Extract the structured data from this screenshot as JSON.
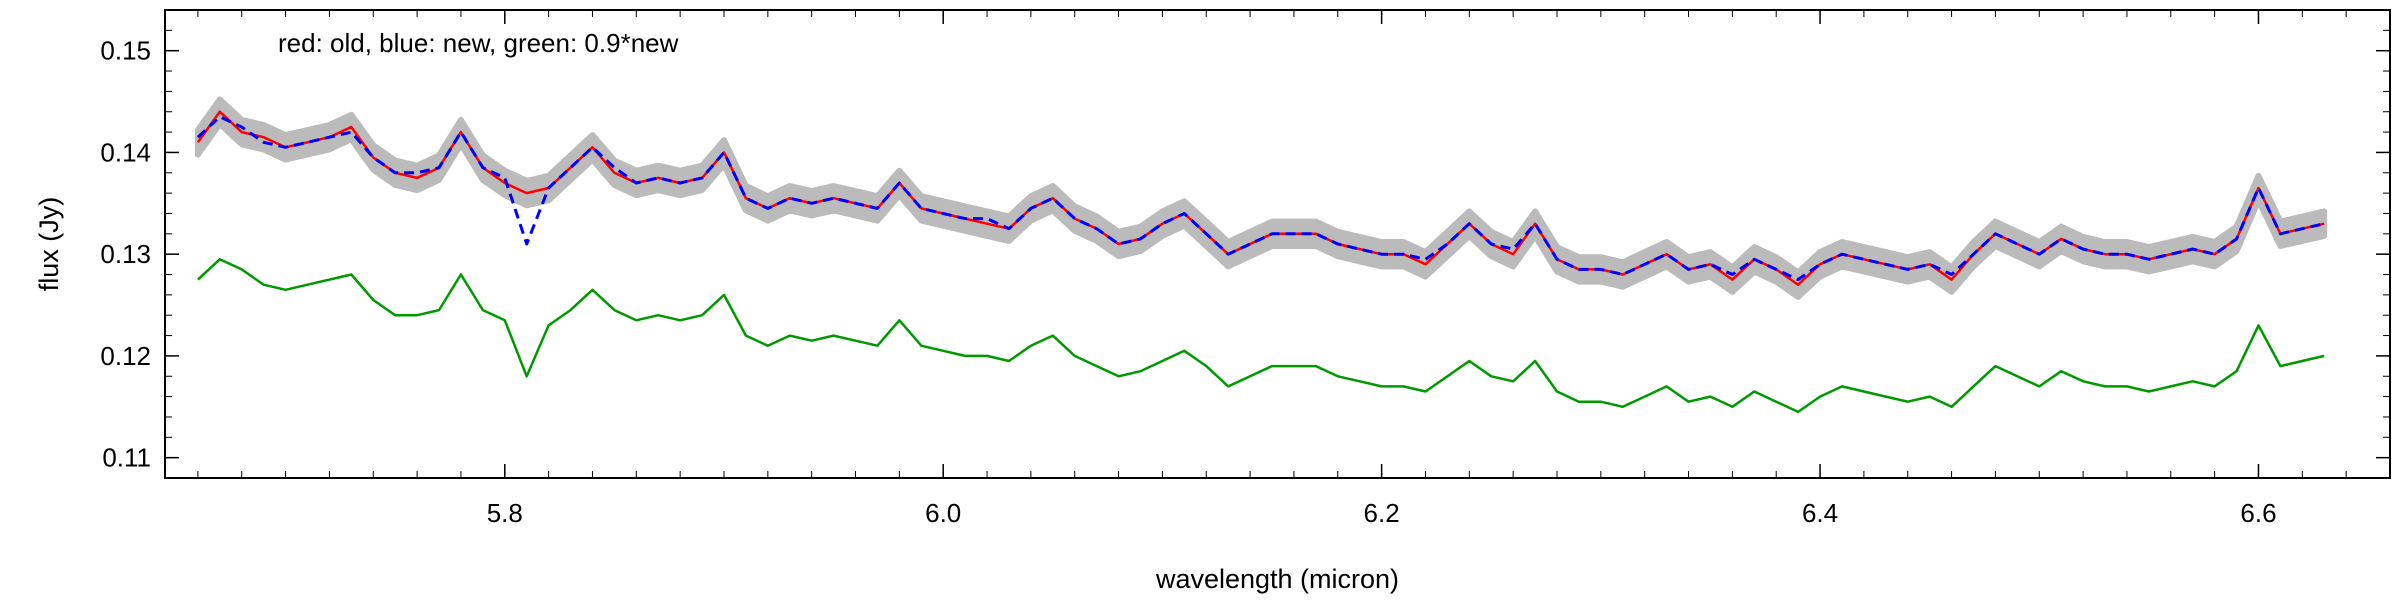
{
  "chart_data": {
    "type": "line",
    "title": "",
    "xlabel": "wavelength (micron)",
    "ylabel": "flux (Jy)",
    "annotation": "red: old, blue: new, green: 0.9*new",
    "xlim": [
      5.645,
      6.66
    ],
    "ylim": [
      0.108,
      0.154
    ],
    "x_ticks": [
      5.8,
      6.0,
      6.2,
      6.4,
      6.6
    ],
    "x_tick_labels": [
      "5.8",
      "6.0",
      "6.2",
      "6.4",
      "6.6"
    ],
    "y_ticks": [
      0.11,
      0.12,
      0.13,
      0.14,
      0.15
    ],
    "y_tick_labels": [
      "0.11",
      "0.12",
      "0.13",
      "0.14",
      "0.15"
    ],
    "grid": false,
    "x": [
      5.66,
      5.67,
      5.68,
      5.69,
      5.7,
      5.71,
      5.72,
      5.73,
      5.74,
      5.75,
      5.76,
      5.77,
      5.78,
      5.79,
      5.8,
      5.81,
      5.82,
      5.83,
      5.84,
      5.85,
      5.86,
      5.87,
      5.88,
      5.89,
      5.9,
      5.91,
      5.92,
      5.93,
      5.94,
      5.95,
      5.96,
      5.97,
      5.98,
      5.99,
      6.0,
      6.01,
      6.02,
      6.03,
      6.04,
      6.05,
      6.06,
      6.07,
      6.08,
      6.09,
      6.1,
      6.11,
      6.12,
      6.13,
      6.14,
      6.15,
      6.16,
      6.17,
      6.18,
      6.19,
      6.2,
      6.21,
      6.22,
      6.23,
      6.24,
      6.25,
      6.26,
      6.27,
      6.28,
      6.29,
      6.3,
      6.31,
      6.32,
      6.33,
      6.34,
      6.35,
      6.36,
      6.37,
      6.38,
      6.39,
      6.4,
      6.41,
      6.42,
      6.43,
      6.44,
      6.45,
      6.46,
      6.47,
      6.48,
      6.49,
      6.5,
      6.51,
      6.52,
      6.53,
      6.54,
      6.55,
      6.56,
      6.57,
      6.58,
      6.59,
      6.6,
      6.61,
      6.62,
      6.63
    ],
    "series": [
      {
        "name": "old",
        "color": "#ff0000",
        "style": "solid",
        "values": [
          0.141,
          0.144,
          0.142,
          0.1415,
          0.1405,
          0.141,
          0.1415,
          0.1425,
          0.1395,
          0.138,
          0.1375,
          0.1385,
          0.142,
          0.1385,
          0.137,
          0.136,
          0.1365,
          0.1385,
          0.1405,
          0.138,
          0.137,
          0.1375,
          0.137,
          0.1375,
          0.14,
          0.1355,
          0.1345,
          0.1355,
          0.135,
          0.1355,
          0.135,
          0.1345,
          0.137,
          0.1345,
          0.134,
          0.1335,
          0.133,
          0.1325,
          0.1345,
          0.1355,
          0.1335,
          0.1325,
          0.131,
          0.1315,
          0.133,
          0.134,
          0.132,
          0.13,
          0.131,
          0.132,
          0.132,
          0.132,
          0.131,
          0.1305,
          0.13,
          0.13,
          0.129,
          0.131,
          0.133,
          0.131,
          0.13,
          0.133,
          0.1295,
          0.1285,
          0.1285,
          0.128,
          0.129,
          0.13,
          0.1285,
          0.129,
          0.1275,
          0.1295,
          0.1285,
          0.127,
          0.129,
          0.13,
          0.1295,
          0.129,
          0.1285,
          0.129,
          0.1275,
          0.13,
          0.132,
          0.131,
          0.13,
          0.1315,
          0.1305,
          0.13,
          0.13,
          0.1295,
          0.13,
          0.1305,
          0.13,
          0.1315,
          0.1365,
          0.132,
          0.1325,
          0.133
        ]
      },
      {
        "name": "new",
        "color": "#0000ff",
        "style": "dashed",
        "values": [
          0.1415,
          0.1435,
          0.1425,
          0.141,
          0.1405,
          0.141,
          0.1415,
          0.142,
          0.1395,
          0.138,
          0.138,
          0.1385,
          0.142,
          0.1385,
          0.1375,
          0.131,
          0.1365,
          0.1385,
          0.1405,
          0.1385,
          0.137,
          0.1375,
          0.137,
          0.1375,
          0.14,
          0.1355,
          0.1345,
          0.1355,
          0.135,
          0.1355,
          0.135,
          0.1345,
          0.137,
          0.1345,
          0.134,
          0.1335,
          0.1335,
          0.1325,
          0.1345,
          0.1355,
          0.1335,
          0.1325,
          0.131,
          0.1315,
          0.133,
          0.134,
          0.132,
          0.13,
          0.131,
          0.132,
          0.132,
          0.132,
          0.131,
          0.1305,
          0.13,
          0.13,
          0.1295,
          0.131,
          0.133,
          0.131,
          0.1305,
          0.133,
          0.1295,
          0.1285,
          0.1285,
          0.128,
          0.129,
          0.13,
          0.1285,
          0.129,
          0.128,
          0.1295,
          0.1285,
          0.1275,
          0.129,
          0.13,
          0.1295,
          0.129,
          0.1285,
          0.129,
          0.128,
          0.13,
          0.132,
          0.131,
          0.13,
          0.1315,
          0.1305,
          0.13,
          0.13,
          0.1295,
          0.13,
          0.1305,
          0.13,
          0.1315,
          0.1365,
          0.132,
          0.1325,
          0.133
        ]
      },
      {
        "name": "0.9*new",
        "color": "#009900",
        "style": "solid",
        "values": [
          0.1275,
          0.1295,
          0.1285,
          0.127,
          0.1265,
          0.127,
          0.1275,
          0.128,
          0.1255,
          0.124,
          0.124,
          0.1245,
          0.128,
          0.1245,
          0.1235,
          0.118,
          0.123,
          0.1245,
          0.1265,
          0.1245,
          0.1235,
          0.124,
          0.1235,
          0.124,
          0.126,
          0.122,
          0.121,
          0.122,
          0.1215,
          0.122,
          0.1215,
          0.121,
          0.1235,
          0.121,
          0.1205,
          0.12,
          0.12,
          0.1195,
          0.121,
          0.122,
          0.12,
          0.119,
          0.118,
          0.1185,
          0.1195,
          0.1205,
          0.119,
          0.117,
          0.118,
          0.119,
          0.119,
          0.119,
          0.118,
          0.1175,
          0.117,
          0.117,
          0.1165,
          0.118,
          0.1195,
          0.118,
          0.1175,
          0.1195,
          0.1165,
          0.1155,
          0.1155,
          0.115,
          0.116,
          0.117,
          0.1155,
          0.116,
          0.115,
          0.1165,
          0.1155,
          0.1145,
          0.116,
          0.117,
          0.1165,
          0.116,
          0.1155,
          0.116,
          0.115,
          0.117,
          0.119,
          0.118,
          0.117,
          0.1185,
          0.1175,
          0.117,
          0.117,
          0.1165,
          0.117,
          0.1175,
          0.117,
          0.1185,
          0.123,
          0.119,
          0.1195,
          0.12
        ]
      }
    ],
    "band": {
      "color": "#bbbbbb",
      "follows": "old",
      "half_width": 0.0012
    }
  }
}
